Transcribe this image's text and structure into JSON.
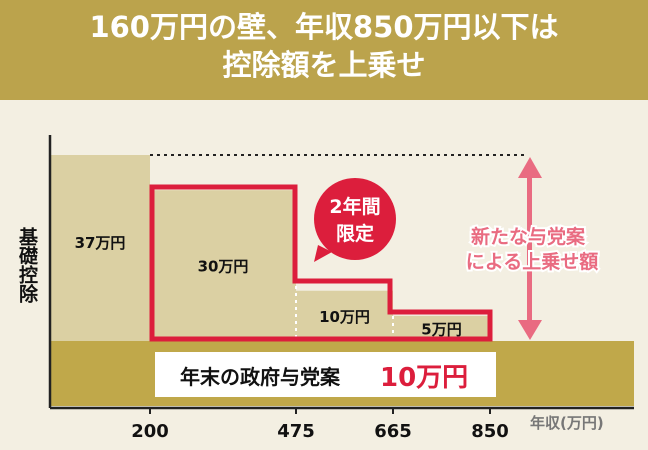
{
  "header": {
    "title_line1": "160万円の壁、年収850万円以下は",
    "title_line2": "控除額を上乗せ"
  },
  "chart_data": {
    "type": "bar",
    "ylabel": "基礎控除",
    "xlabel": "年収(万円)",
    "x_ticks": [
      "200",
      "475",
      "665",
      "850"
    ],
    "x_domain": [
      0,
      200,
      475,
      665,
      850,
      990
    ],
    "base": {
      "label_prefix": "年末の政府与党案",
      "label_value": "10万円",
      "color": "#c0a84a"
    },
    "bars": [
      {
        "from": 0,
        "to": 200,
        "label": "37万円",
        "value": 37
      },
      {
        "from": 200,
        "to": 475,
        "label": "30万円",
        "value": 30
      },
      {
        "from": 475,
        "to": 665,
        "label": "10万円",
        "value": 10
      },
      {
        "from": 665,
        "to": 850,
        "label": "5万円",
        "value": 5
      }
    ],
    "badge": {
      "line1": "2年間",
      "line2": "限定"
    },
    "annotation": {
      "line1": "新たな与党案",
      "line2": "による上乗せ額"
    },
    "colors": {
      "bar": "#dbd0a3",
      "highlight": "#dc1e3c",
      "annotation": "#e96b81",
      "background": "#f3efe2"
    }
  }
}
